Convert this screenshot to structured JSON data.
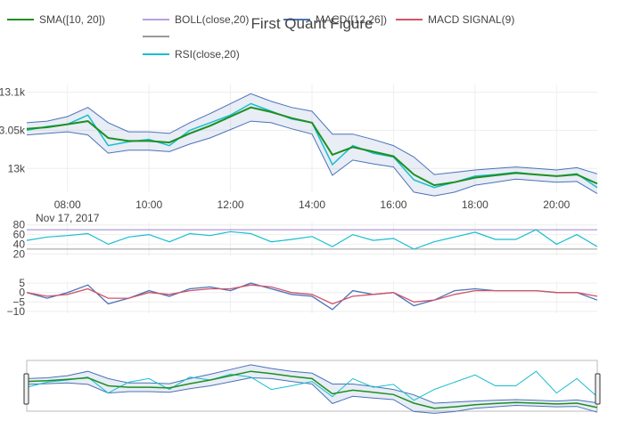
{
  "chart_data": {
    "type": "line",
    "title": "First Quant Figure",
    "date_label": "Nov 17, 2017",
    "x_ticks": [
      "08:00",
      "10:00",
      "12:00",
      "14:00",
      "16:00",
      "18:00",
      "20:00"
    ],
    "x_hours": [
      8,
      10,
      12,
      14,
      16,
      18,
      20
    ],
    "x_range_hours": [
      7,
      21
    ],
    "legend": [
      {
        "name": "SMA([10, 20])",
        "color": "#1f8f1f"
      },
      {
        "name": "BOLL(close,20)",
        "color": "#b8a0e0"
      },
      {
        "name": "MACD([12,26])",
        "color": "#4a72b8"
      },
      {
        "name": "MACD SIGNAL(9)",
        "color": "#d0556a"
      },
      {
        "name": "",
        "color": "#999999"
      },
      {
        "name": "RSI(close,20)",
        "color": "#17becf"
      }
    ],
    "price_panel": {
      "y_ticks": [
        "13.1k",
        "13.05k",
        "13k"
      ],
      "y_values": [
        13100,
        13050,
        13000
      ],
      "ylim": [
        12970,
        13110
      ],
      "series": [
        {
          "name": "close",
          "color": "#17becf",
          "x": [
            7.0,
            7.5,
            8.0,
            8.5,
            9.0,
            9.5,
            10.0,
            10.5,
            11.0,
            11.5,
            12.0,
            12.5,
            13.0,
            13.5,
            14.0,
            14.5,
            15.0,
            15.5,
            16.0,
            16.5,
            17.0,
            17.5,
            18.0,
            18.5,
            19.0,
            19.5,
            20.0,
            20.5,
            21.0
          ],
          "y": [
            13050,
            13055,
            13058,
            13070,
            13030,
            13035,
            13038,
            13030,
            13050,
            13060,
            13070,
            13085,
            13075,
            13065,
            13060,
            13005,
            13030,
            13020,
            13015,
            12985,
            12975,
            12982,
            12990,
            12992,
            12995,
            12992,
            12990,
            12993,
            12975
          ]
        },
        {
          "name": "SMA([10, 20])",
          "color": "#1f8f1f",
          "x": [
            7.0,
            7.5,
            8.0,
            8.5,
            9.0,
            9.5,
            10.0,
            10.5,
            11.0,
            11.5,
            12.0,
            12.5,
            13.0,
            13.5,
            14.0,
            14.5,
            15.0,
            15.5,
            16.0,
            16.5,
            17.0,
            17.5,
            18.0,
            18.5,
            19.0,
            19.5,
            20.0,
            20.5,
            21.0
          ],
          "y": [
            13052,
            13054,
            13058,
            13062,
            13040,
            13036,
            13036,
            13034,
            13046,
            13056,
            13068,
            13080,
            13074,
            13066,
            13060,
            13018,
            13028,
            13022,
            13016,
            12992,
            12978,
            12982,
            12988,
            12991,
            12994,
            12992,
            12990,
            12992,
            12980
          ]
        },
        {
          "name": "BOLL upper",
          "color": "#4a72b8",
          "x": [
            7.0,
            7.5,
            8.0,
            8.5,
            9.0,
            9.5,
            10.0,
            10.5,
            11.0,
            11.5,
            12.0,
            12.5,
            13.0,
            13.5,
            14.0,
            14.5,
            15.0,
            15.5,
            16.0,
            16.5,
            17.0,
            17.5,
            18.0,
            18.5,
            19.0,
            19.5,
            20.0,
            20.5,
            21.0
          ],
          "y": [
            13060,
            13062,
            13068,
            13080,
            13060,
            13048,
            13048,
            13046,
            13060,
            13072,
            13085,
            13098,
            13088,
            13080,
            13075,
            13045,
            13045,
            13038,
            13030,
            13015,
            12992,
            12995,
            12998,
            13000,
            13002,
            13000,
            12998,
            13001,
            12993
          ]
        },
        {
          "name": "BOLL lower",
          "color": "#4a72b8",
          "x": [
            7.0,
            7.5,
            8.0,
            8.5,
            9.0,
            9.5,
            10.0,
            10.5,
            11.0,
            11.5,
            12.0,
            12.5,
            13.0,
            13.5,
            14.0,
            14.5,
            15.0,
            15.5,
            16.0,
            16.5,
            17.0,
            17.5,
            18.0,
            18.5,
            19.0,
            19.5,
            20.0,
            20.5,
            21.0
          ],
          "y": [
            13044,
            13046,
            13048,
            13044,
            13020,
            13024,
            13024,
            13022,
            13032,
            13040,
            13051,
            13062,
            13060,
            13052,
            13045,
            12991,
            13011,
            13006,
            13002,
            12969,
            12964,
            12969,
            12978,
            12982,
            12986,
            12984,
            12982,
            12983,
            12967
          ]
        }
      ]
    },
    "rsi_panel": {
      "y_ticks": [
        "80",
        "60",
        "40",
        "20"
      ],
      "y_values": [
        80,
        60,
        40,
        20
      ],
      "ylim": [
        15,
        85
      ],
      "levels": [
        70,
        30
      ],
      "series": [
        {
          "name": "RSI(close,20)",
          "color": "#17becf",
          "x": [
            7.0,
            7.5,
            8.0,
            8.5,
            9.0,
            9.5,
            10.0,
            10.5,
            11.0,
            11.5,
            12.0,
            12.5,
            13.0,
            13.5,
            14.0,
            14.5,
            15.0,
            15.5,
            16.0,
            16.5,
            17.0,
            17.5,
            18.0,
            18.5,
            19.0,
            19.5,
            20.0,
            20.5,
            21.0
          ],
          "y": [
            48,
            55,
            58,
            62,
            40,
            55,
            60,
            45,
            62,
            58,
            66,
            62,
            45,
            50,
            56,
            35,
            60,
            48,
            52,
            30,
            45,
            55,
            65,
            50,
            50,
            70,
            40,
            60,
            35
          ]
        }
      ]
    },
    "macd_panel": {
      "y_ticks": [
        "5",
        "0",
        "−5",
        "−10"
      ],
      "y_values": [
        5,
        0,
        -5,
        -10
      ],
      "ylim": [
        -11,
        6
      ],
      "series": [
        {
          "name": "MACD([12,26])",
          "color": "#4a72b8",
          "x": [
            7.0,
            7.5,
            8.0,
            8.5,
            9.0,
            9.5,
            10.0,
            10.5,
            11.0,
            11.5,
            12.0,
            12.5,
            13.0,
            13.5,
            14.0,
            14.5,
            15.0,
            15.5,
            16.0,
            16.5,
            17.0,
            17.5,
            18.0,
            18.5,
            19.0,
            19.5,
            20.0,
            20.5,
            21.0
          ],
          "y": [
            0,
            -3,
            0,
            4,
            -6,
            -3,
            1,
            -2,
            2,
            3,
            1,
            5,
            2,
            -1,
            -2,
            -9,
            1,
            -1,
            0,
            -7,
            -4,
            1,
            2,
            1,
            1,
            1,
            0,
            0,
            -4
          ]
        },
        {
          "name": "MACD SIGNAL(9)",
          "color": "#d0556a",
          "x": [
            7.0,
            7.5,
            8.0,
            8.5,
            9.0,
            9.5,
            10.0,
            10.5,
            11.0,
            11.5,
            12.0,
            12.5,
            13.0,
            13.5,
            14.0,
            14.5,
            15.0,
            15.5,
            16.0,
            16.5,
            17.0,
            17.5,
            18.0,
            18.5,
            19.0,
            19.5,
            20.0,
            20.5,
            21.0
          ],
          "y": [
            0,
            -2,
            -1,
            2,
            -3,
            -3,
            0,
            -1,
            1,
            2,
            2,
            4,
            3,
            0,
            -1,
            -6,
            -2,
            -1,
            0,
            -5,
            -4,
            -1,
            1,
            1,
            1,
            1,
            0,
            0,
            -2
          ]
        }
      ]
    }
  }
}
